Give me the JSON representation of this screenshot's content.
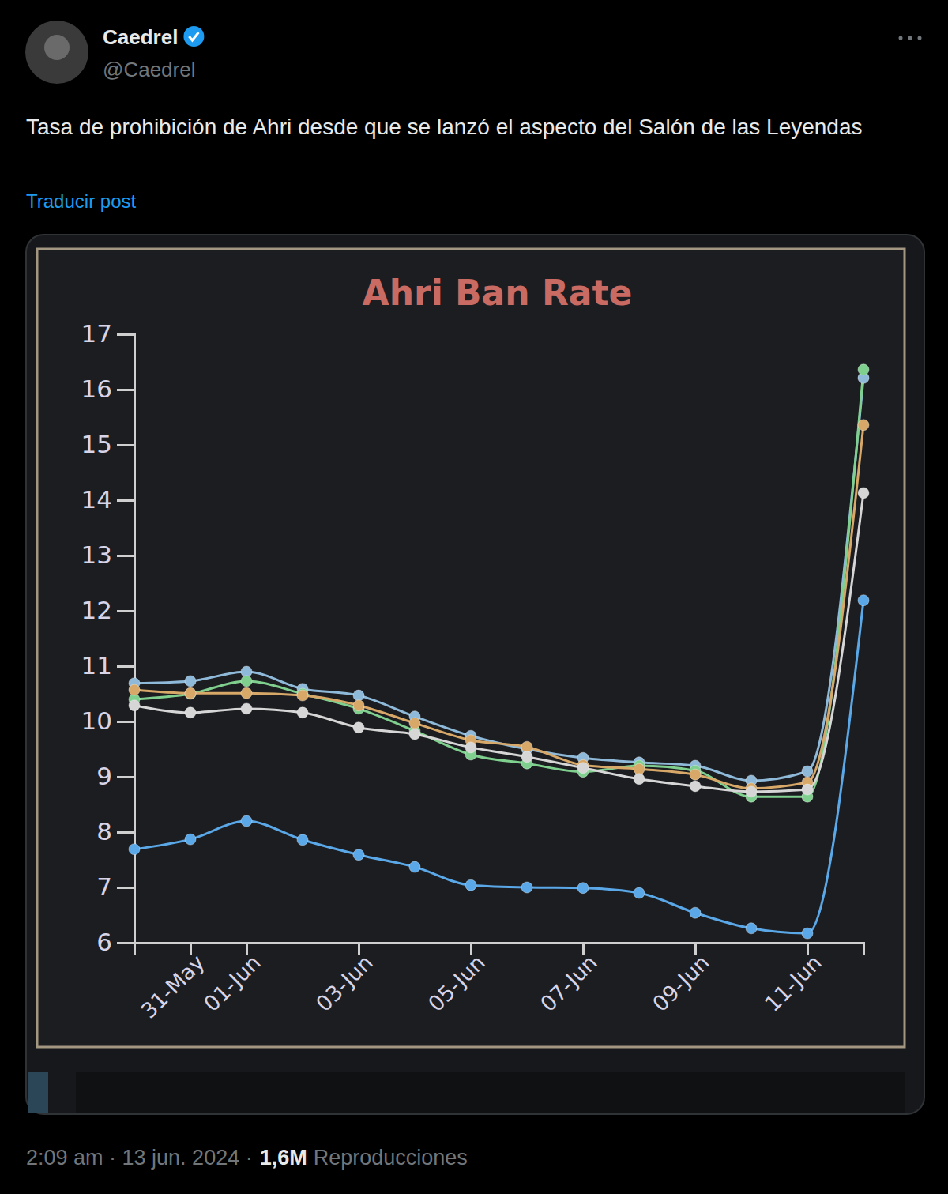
{
  "post": {
    "author": "Caedrel",
    "handle": "@Caedrel",
    "text": "Tasa de prohibición de Ahri desde que se lanzó el aspecto del Salón de las Leyendas",
    "translate": "Traducir post",
    "timestamp": "2:09 am · 13 jun. 2024 ·",
    "views": "1,6M",
    "views_label": "Reproducciones"
  },
  "chart_data": {
    "type": "line",
    "title": "Ahri Ban Rate",
    "categories": [
      null,
      "31-May",
      "01-Jun",
      null,
      "03-Jun",
      null,
      "05-Jun",
      null,
      "07-Jun",
      null,
      "09-Jun",
      null,
      "11-Jun",
      null
    ],
    "series": [
      {
        "color": "#8fb9d8",
        "values": [
          10.69,
          10.73,
          10.9,
          10.59,
          10.47,
          10.09,
          9.74,
          9.5,
          9.34,
          9.26,
          9.2,
          8.93,
          9.1,
          16.21
        ]
      },
      {
        "color": "#7fd08e",
        "values": [
          10.4,
          10.5,
          10.73,
          10.5,
          10.23,
          9.83,
          9.4,
          9.24,
          9.09,
          9.2,
          9.11,
          8.64,
          8.64,
          16.36
        ]
      },
      {
        "color": "#d8a868",
        "values": [
          10.57,
          10.51,
          10.51,
          10.47,
          10.29,
          9.97,
          9.66,
          9.54,
          9.21,
          9.14,
          9.04,
          8.79,
          8.9,
          15.36
        ]
      },
      {
        "color": "#d6d6d6",
        "values": [
          10.29,
          10.16,
          10.23,
          10.16,
          9.89,
          9.77,
          9.53,
          9.36,
          9.16,
          8.96,
          8.83,
          8.73,
          8.77,
          14.13
        ]
      },
      {
        "color": "#5aa8e8",
        "values": [
          7.69,
          7.87,
          8.2,
          7.86,
          7.59,
          7.37,
          7.04,
          7.0,
          6.99,
          6.9,
          6.54,
          6.26,
          6.17,
          12.19
        ]
      }
    ],
    "ylim": [
      6,
      17
    ],
    "yticks": [
      6,
      7,
      8,
      9,
      10,
      11,
      12,
      13,
      14,
      15,
      16,
      17
    ],
    "grid": false,
    "marker": "circle",
    "line_style": "solid"
  }
}
